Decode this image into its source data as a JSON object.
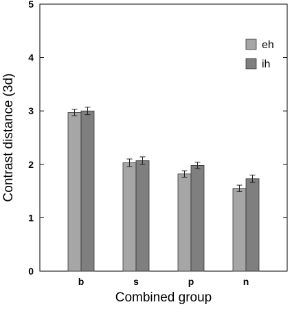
{
  "chart_data": {
    "type": "bar",
    "title": "",
    "xlabel": "Combined group",
    "ylabel": "Contrast distance (3d)",
    "categories": [
      "b",
      "s",
      "p",
      "n"
    ],
    "ylim": [
      0,
      5
    ],
    "yticks": [
      "0",
      "1",
      "2",
      "3",
      "4",
      "5"
    ],
    "error_bars": true,
    "grid": false,
    "legend_position": "top-right",
    "series": [
      {
        "name": "eh",
        "color": "#a6a6a6",
        "values": [
          2.97,
          2.03,
          1.82,
          1.55
        ],
        "errors": [
          0.06,
          0.07,
          0.06,
          0.06
        ]
      },
      {
        "name": "ih",
        "color": "#7f7f7f",
        "values": [
          3.0,
          2.07,
          1.98,
          1.73
        ],
        "errors": [
          0.07,
          0.07,
          0.06,
          0.07
        ]
      }
    ]
  }
}
